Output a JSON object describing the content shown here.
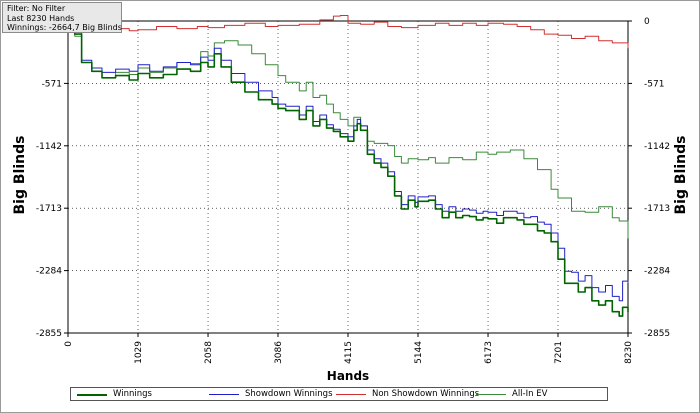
{
  "filter_box": {
    "line1": "Filter: No Filter",
    "line2": "Last  8230 Hands",
    "line3": "Winnings: -2664,7 Big Blinds"
  },
  "chart_data": {
    "type": "line",
    "title": "",
    "xlabel": "Hands",
    "ylabel_left": "Big Blinds",
    "ylabel_right": "Big Blinds",
    "xlim": [
      0,
      8230
    ],
    "ylim": [
      -2855,
      135
    ],
    "x_ticks": [
      "0",
      "1029",
      "2058",
      "3086",
      "4115",
      "5144",
      "6173",
      "7201",
      "8230"
    ],
    "x_tick_values": [
      0,
      1029,
      2058,
      3086,
      4115,
      5144,
      6173,
      7201,
      8230
    ],
    "y_ticks": [
      "0",
      "-571",
      "-1142",
      "-1713",
      "-2284",
      "-2855"
    ],
    "y_tick_values": [
      0,
      -571,
      -1142,
      -1713,
      -2284,
      -2855
    ],
    "grid": true,
    "legend_position": "bottom",
    "series": [
      {
        "name": "Winnings",
        "color": "#006400",
        "width": 1.6,
        "points": [
          [
            0,
            0
          ],
          [
            100,
            -120
          ],
          [
            200,
            -380
          ],
          [
            350,
            -460
          ],
          [
            500,
            -520
          ],
          [
            700,
            -500
          ],
          [
            900,
            -540
          ],
          [
            1029,
            -480
          ],
          [
            1200,
            -520
          ],
          [
            1400,
            -490
          ],
          [
            1600,
            -440
          ],
          [
            1800,
            -460
          ],
          [
            1950,
            -380
          ],
          [
            2058,
            -420
          ],
          [
            2150,
            -300
          ],
          [
            2250,
            -420
          ],
          [
            2400,
            -560
          ],
          [
            2600,
            -650
          ],
          [
            2800,
            -720
          ],
          [
            3000,
            -760
          ],
          [
            3086,
            -800
          ],
          [
            3200,
            -820
          ],
          [
            3400,
            -900
          ],
          [
            3500,
            -820
          ],
          [
            3600,
            -960
          ],
          [
            3700,
            -900
          ],
          [
            3800,
            -980
          ],
          [
            3900,
            -1010
          ],
          [
            4000,
            -1060
          ],
          [
            4115,
            -1100
          ],
          [
            4200,
            -1000
          ],
          [
            4250,
            -940
          ],
          [
            4300,
            -1000
          ],
          [
            4400,
            -1220
          ],
          [
            4500,
            -1300
          ],
          [
            4600,
            -1340
          ],
          [
            4700,
            -1420
          ],
          [
            4800,
            -1600
          ],
          [
            4900,
            -1720
          ],
          [
            5000,
            -1640
          ],
          [
            5100,
            -1700
          ],
          [
            5144,
            -1650
          ],
          [
            5300,
            -1640
          ],
          [
            5400,
            -1720
          ],
          [
            5500,
            -1800
          ],
          [
            5600,
            -1750
          ],
          [
            5700,
            -1800
          ],
          [
            5800,
            -1780
          ],
          [
            5900,
            -1790
          ],
          [
            6000,
            -1820
          ],
          [
            6100,
            -1800
          ],
          [
            6173,
            -1810
          ],
          [
            6300,
            -1850
          ],
          [
            6400,
            -1800
          ],
          [
            6500,
            -1800
          ],
          [
            6600,
            -1820
          ],
          [
            6700,
            -1860
          ],
          [
            6800,
            -1860
          ],
          [
            6900,
            -1920
          ],
          [
            7000,
            -1940
          ],
          [
            7100,
            -2020
          ],
          [
            7201,
            -2180
          ],
          [
            7300,
            -2400
          ],
          [
            7400,
            -2400
          ],
          [
            7500,
            -2480
          ],
          [
            7600,
            -2440
          ],
          [
            7700,
            -2560
          ],
          [
            7800,
            -2600
          ],
          [
            7900,
            -2560
          ],
          [
            8000,
            -2660
          ],
          [
            8100,
            -2700
          ],
          [
            8150,
            -2620
          ],
          [
            8230,
            -2664
          ]
        ]
      },
      {
        "name": "Showdown Winnings",
        "color": "#2020c8",
        "width": 1,
        "points": [
          [
            0,
            0
          ],
          [
            100,
            -100
          ],
          [
            200,
            -360
          ],
          [
            350,
            -430
          ],
          [
            500,
            -470
          ],
          [
            700,
            -440
          ],
          [
            900,
            -460
          ],
          [
            1029,
            -400
          ],
          [
            1200,
            -460
          ],
          [
            1400,
            -420
          ],
          [
            1600,
            -380
          ],
          [
            1800,
            -400
          ],
          [
            1950,
            -330
          ],
          [
            2058,
            -360
          ],
          [
            2150,
            -250
          ],
          [
            2250,
            -360
          ],
          [
            2400,
            -480
          ],
          [
            2600,
            -560
          ],
          [
            2800,
            -640
          ],
          [
            3000,
            -700
          ],
          [
            3086,
            -760
          ],
          [
            3200,
            -780
          ],
          [
            3400,
            -860
          ],
          [
            3500,
            -780
          ],
          [
            3600,
            -920
          ],
          [
            3700,
            -860
          ],
          [
            3800,
            -950
          ],
          [
            3900,
            -990
          ],
          [
            4000,
            -1030
          ],
          [
            4115,
            -1060
          ],
          [
            4200,
            -960
          ],
          [
            4250,
            -900
          ],
          [
            4300,
            -960
          ],
          [
            4400,
            -1180
          ],
          [
            4500,
            -1260
          ],
          [
            4600,
            -1300
          ],
          [
            4700,
            -1380
          ],
          [
            4800,
            -1560
          ],
          [
            4900,
            -1680
          ],
          [
            5000,
            -1600
          ],
          [
            5100,
            -1660
          ],
          [
            5144,
            -1610
          ],
          [
            5300,
            -1600
          ],
          [
            5400,
            -1680
          ],
          [
            5500,
            -1740
          ],
          [
            5600,
            -1700
          ],
          [
            5700,
            -1740
          ],
          [
            5800,
            -1720
          ],
          [
            5900,
            -1730
          ],
          [
            6000,
            -1760
          ],
          [
            6100,
            -1740
          ],
          [
            6173,
            -1750
          ],
          [
            6300,
            -1780
          ],
          [
            6400,
            -1740
          ],
          [
            6500,
            -1740
          ],
          [
            6600,
            -1760
          ],
          [
            6700,
            -1800
          ],
          [
            6800,
            -1790
          ],
          [
            6900,
            -1840
          ],
          [
            7000,
            -1860
          ],
          [
            7100,
            -1940
          ],
          [
            7201,
            -2080
          ],
          [
            7300,
            -2290
          ],
          [
            7400,
            -2300
          ],
          [
            7500,
            -2380
          ],
          [
            7600,
            -2330
          ],
          [
            7700,
            -2440
          ],
          [
            7800,
            -2480
          ],
          [
            7900,
            -2420
          ],
          [
            8000,
            -2520
          ],
          [
            8100,
            -2560
          ],
          [
            8150,
            -2380
          ],
          [
            8230,
            -2400
          ]
        ]
      },
      {
        "name": "Non Showdown Winnings",
        "color": "#d03030",
        "width": 1,
        "points": [
          [
            0,
            0
          ],
          [
            150,
            -40
          ],
          [
            300,
            -90
          ],
          [
            500,
            -80
          ],
          [
            700,
            -70
          ],
          [
            900,
            -90
          ],
          [
            1029,
            -80
          ],
          [
            1300,
            -50
          ],
          [
            1600,
            -70
          ],
          [
            1900,
            -50
          ],
          [
            2058,
            -60
          ],
          [
            2300,
            -40
          ],
          [
            2600,
            -20
          ],
          [
            2900,
            -50
          ],
          [
            3086,
            -40
          ],
          [
            3400,
            -30
          ],
          [
            3700,
            10
          ],
          [
            3900,
            45
          ],
          [
            4000,
            50
          ],
          [
            4115,
            -20
          ],
          [
            4300,
            -30
          ],
          [
            4500,
            -10
          ],
          [
            4700,
            -50
          ],
          [
            4900,
            -60
          ],
          [
            5144,
            -40
          ],
          [
            5400,
            -20
          ],
          [
            5600,
            -40
          ],
          [
            5800,
            -20
          ],
          [
            6000,
            -40
          ],
          [
            6173,
            -20
          ],
          [
            6400,
            -30
          ],
          [
            6600,
            -50
          ],
          [
            6800,
            -80
          ],
          [
            7000,
            -120
          ],
          [
            7201,
            -130
          ],
          [
            7400,
            -160
          ],
          [
            7600,
            -140
          ],
          [
            7800,
            -180
          ],
          [
            8000,
            -200
          ],
          [
            8230,
            -250
          ]
        ]
      },
      {
        "name": "All-In EV",
        "color": "#3a8a3a",
        "width": 1,
        "points": [
          [
            0,
            0
          ],
          [
            100,
            -140
          ],
          [
            200,
            -380
          ],
          [
            350,
            -460
          ],
          [
            500,
            -520
          ],
          [
            700,
            -470
          ],
          [
            900,
            -490
          ],
          [
            1029,
            -430
          ],
          [
            1200,
            -470
          ],
          [
            1400,
            -430
          ],
          [
            1600,
            -380
          ],
          [
            1800,
            -390
          ],
          [
            1950,
            -280
          ],
          [
            2058,
            -320
          ],
          [
            2150,
            -200
          ],
          [
            2300,
            -180
          ],
          [
            2500,
            -220
          ],
          [
            2700,
            -300
          ],
          [
            2900,
            -400
          ],
          [
            3086,
            -500
          ],
          [
            3200,
            -560
          ],
          [
            3400,
            -640
          ],
          [
            3500,
            -560
          ],
          [
            3600,
            -700
          ],
          [
            3700,
            -680
          ],
          [
            3800,
            -760
          ],
          [
            3900,
            -840
          ],
          [
            4000,
            -900
          ],
          [
            4115,
            -960
          ],
          [
            4200,
            -880
          ],
          [
            4300,
            -960
          ],
          [
            4400,
            -1100
          ],
          [
            4500,
            -1120
          ],
          [
            4700,
            -1140
          ],
          [
            4800,
            -1240
          ],
          [
            4900,
            -1300
          ],
          [
            5000,
            -1260
          ],
          [
            5144,
            -1270
          ],
          [
            5300,
            -1250
          ],
          [
            5400,
            -1300
          ],
          [
            5600,
            -1250
          ],
          [
            5800,
            -1270
          ],
          [
            6000,
            -1200
          ],
          [
            6173,
            -1220
          ],
          [
            6300,
            -1200
          ],
          [
            6500,
            -1180
          ],
          [
            6700,
            -1260
          ],
          [
            6900,
            -1360
          ],
          [
            7100,
            -1540
          ],
          [
            7201,
            -1620
          ],
          [
            7400,
            -1740
          ],
          [
            7600,
            -1750
          ],
          [
            7800,
            -1700
          ],
          [
            8000,
            -1800
          ],
          [
            8100,
            -1830
          ],
          [
            8230,
            -1990
          ]
        ]
      }
    ]
  }
}
